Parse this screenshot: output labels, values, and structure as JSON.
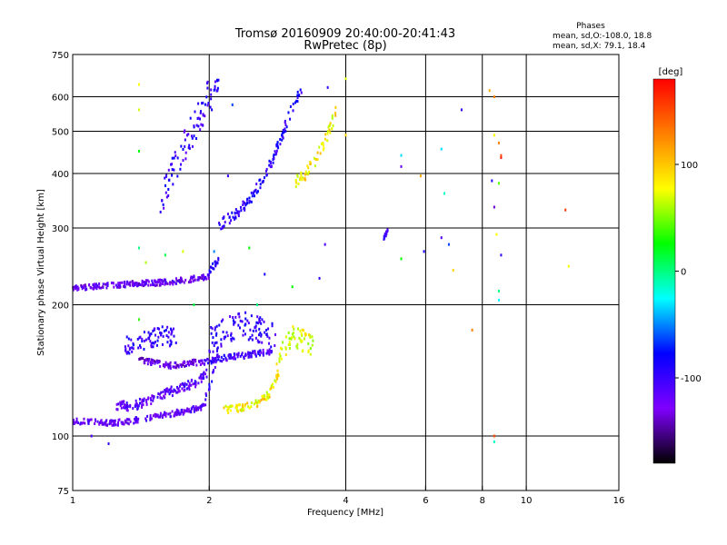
{
  "header": {
    "title_line1": "Tromsø 20160909 20:40:00-20:41:43",
    "title_line2": "RwPretec (8p)"
  },
  "phases_box": {
    "heading": "Phases",
    "line_o": "mean, sd,O:-108.0, 18.8",
    "line_x": "mean, sd,X:  79.1, 18.4"
  },
  "chart_data": {
    "type": "scatter",
    "xlabel": "Frequency [MHz]",
    "ylabel": "Stationary phase Virtual Height [km]",
    "x_scale": "log",
    "y_scale": "log",
    "xlim": [
      1,
      16
    ],
    "ylim": [
      75,
      750
    ],
    "x_ticks": [
      1,
      2,
      4,
      6,
      8,
      10,
      16
    ],
    "y_ticks": [
      75,
      100,
      200,
      300,
      400,
      500,
      600,
      750
    ],
    "x_gridlines": [
      2,
      4,
      6,
      8,
      10
    ],
    "y_gridlines": [
      100,
      200,
      300,
      400,
      500,
      600
    ],
    "grid": true,
    "color_by": "phase [deg]",
    "colorbar": {
      "label": "[deg]",
      "range": [
        -180,
        180
      ],
      "ticks": [
        100,
        0,
        -100
      ],
      "colors": [
        "#ff0000",
        "#ff8000",
        "#ffff00",
        "#00ff00",
        "#00ffff",
        "#0000ff",
        "#8000ff",
        "#000000"
      ]
    },
    "traces": [
      {
        "x_range": [
          1.0,
          1.95
        ],
        "h": [
          108,
          108,
          107,
          108,
          110,
          112,
          114,
          117
        ],
        "phase": -120,
        "spread": 0.015
      },
      {
        "x_range": [
          1.95,
          2.1
        ],
        "h": [
          118,
          135,
          160
        ],
        "phase": -105,
        "spread": 0.03
      },
      {
        "x_range": [
          1.25,
          2.0
        ],
        "h": [
          118,
          117,
          120,
          125,
          128,
          132,
          140
        ],
        "phase": -115,
        "spread": 0.025
      },
      {
        "x_range": [
          1.4,
          1.95
        ],
        "h": [
          150,
          147,
          145,
          147,
          148
        ],
        "phase": -130,
        "spread": 0.015
      },
      {
        "x_range": [
          1.95,
          2.75
        ],
        "h": [
          148,
          150,
          152,
          153,
          155,
          156
        ],
        "phase": -105,
        "spread": 0.015
      },
      {
        "x_range": [
          1.3,
          1.7
        ],
        "h": [
          160,
          165,
          170,
          168
        ],
        "phase": -100,
        "spread": 0.05
      },
      {
        "x_range": [
          2.0,
          2.8
        ],
        "h": [
          165,
          175,
          180,
          175,
          170
        ],
        "phase": -100,
        "spread": 0.07
      },
      {
        "x_range": [
          2.15,
          2.85
        ],
        "h": [
          115,
          115,
          116,
          118,
          120,
          125,
          140
        ],
        "phase": 100,
        "spread": 0.02
      },
      {
        "x_range": [
          2.8,
          3.4
        ],
        "h": [
          140,
          160,
          170,
          165,
          160
        ],
        "phase": 90,
        "spread": 0.06
      },
      {
        "x_range": [
          1.0,
          2.0
        ],
        "h": [
          218,
          220,
          222,
          224,
          225,
          228,
          232
        ],
        "phase": -125,
        "spread": 0.015
      },
      {
        "x_range": [
          1.98,
          2.1
        ],
        "h": [
          235,
          245,
          255
        ],
        "phase": -100,
        "spread": 0.02
      },
      {
        "x_range": [
          1.55,
          2.1
        ],
        "h": [
          330,
          380,
          430,
          480,
          540,
          600,
          620
        ],
        "phase": -100,
        "spread": 0.09
      },
      {
        "x_range": [
          2.1,
          3.2
        ],
        "h": [
          305,
          315,
          330,
          350,
          380,
          420,
          480,
          560,
          630
        ],
        "phase": -95,
        "spread": 0.03
      },
      {
        "x_range": [
          3.1,
          3.8
        ],
        "h": [
          380,
          400,
          430,
          480,
          550
        ],
        "phase": 100,
        "spread": 0.035
      },
      {
        "x_range": [
          4.85,
          4.95
        ],
        "h": [
          285,
          295
        ],
        "phase": -100,
        "spread": 0.01
      }
    ],
    "scatter_points": [
      {
        "x": 1.4,
        "h": 640,
        "phase": 100
      },
      {
        "x": 1.4,
        "h": 560,
        "phase": 90
      },
      {
        "x": 1.4,
        "h": 450,
        "phase": 40
      },
      {
        "x": 1.4,
        "h": 270,
        "phase": 20
      },
      {
        "x": 1.45,
        "h": 250,
        "phase": 80
      },
      {
        "x": 1.4,
        "h": 185,
        "phase": 50
      },
      {
        "x": 1.6,
        "h": 260,
        "phase": 30
      },
      {
        "x": 1.75,
        "h": 265,
        "phase": 90
      },
      {
        "x": 2.05,
        "h": 265,
        "phase": -40
      },
      {
        "x": 2.45,
        "h": 270,
        "phase": 40
      },
      {
        "x": 2.65,
        "h": 235,
        "phase": -90
      },
      {
        "x": 3.05,
        "h": 220,
        "phase": 40
      },
      {
        "x": 2.55,
        "h": 200,
        "phase": 20
      },
      {
        "x": 1.85,
        "h": 200,
        "phase": 30
      },
      {
        "x": 4.0,
        "h": 660,
        "phase": 90
      },
      {
        "x": 4.0,
        "h": 490,
        "phase": 110
      },
      {
        "x": 5.3,
        "h": 440,
        "phase": -10
      },
      {
        "x": 5.3,
        "h": 415,
        "phase": -120
      },
      {
        "x": 5.3,
        "h": 255,
        "phase": 40
      },
      {
        "x": 5.85,
        "h": 395,
        "phase": 120
      },
      {
        "x": 5.95,
        "h": 265,
        "phase": -90
      },
      {
        "x": 6.5,
        "h": 455,
        "phase": -10
      },
      {
        "x": 6.6,
        "h": 360,
        "phase": 10
      },
      {
        "x": 6.5,
        "h": 285,
        "phase": -110
      },
      {
        "x": 6.75,
        "h": 275,
        "phase": -60
      },
      {
        "x": 6.9,
        "h": 240,
        "phase": 110
      },
      {
        "x": 7.2,
        "h": 560,
        "phase": -100
      },
      {
        "x": 7.6,
        "h": 175,
        "phase": 130
      },
      {
        "x": 8.3,
        "h": 620,
        "phase": 120
      },
      {
        "x": 8.5,
        "h": 600,
        "phase": 130
      },
      {
        "x": 8.5,
        "h": 490,
        "phase": 100
      },
      {
        "x": 8.7,
        "h": 470,
        "phase": 130
      },
      {
        "x": 8.8,
        "h": 440,
        "phase": 150
      },
      {
        "x": 8.8,
        "h": 435,
        "phase": 170
      },
      {
        "x": 8.4,
        "h": 385,
        "phase": -90
      },
      {
        "x": 8.7,
        "h": 380,
        "phase": 60
      },
      {
        "x": 8.5,
        "h": 335,
        "phase": -140
      },
      {
        "x": 8.6,
        "h": 290,
        "phase": 100
      },
      {
        "x": 8.8,
        "h": 260,
        "phase": -100
      },
      {
        "x": 8.7,
        "h": 215,
        "phase": 20
      },
      {
        "x": 8.7,
        "h": 205,
        "phase": 0
      },
      {
        "x": 8.5,
        "h": 100,
        "phase": 150
      },
      {
        "x": 8.5,
        "h": 97,
        "phase": 10
      },
      {
        "x": 12.2,
        "h": 330,
        "phase": 160
      },
      {
        "x": 12.4,
        "h": 245,
        "phase": 100
      },
      {
        "x": 1.2,
        "h": 96,
        "phase": -100
      },
      {
        "x": 1.1,
        "h": 100,
        "phase": -110
      },
      {
        "x": 3.6,
        "h": 275,
        "phase": -110
      },
      {
        "x": 3.5,
        "h": 230,
        "phase": -100
      },
      {
        "x": 3.65,
        "h": 630,
        "phase": -100
      },
      {
        "x": 2.25,
        "h": 575,
        "phase": -60
      },
      {
        "x": 2.2,
        "h": 395,
        "phase": -100
      }
    ]
  }
}
